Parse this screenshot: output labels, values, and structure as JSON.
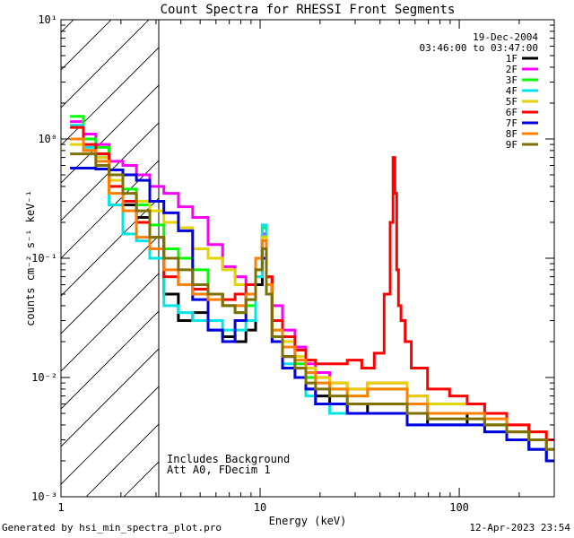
{
  "chart_data": {
    "type": "line",
    "title": "Count Spectra for RHESSI Front Segments",
    "xlabel": "Energy (keV)",
    "ylabel": "counts cm⁻² s⁻¹ keV⁻¹",
    "xscale": "log",
    "yscale": "log",
    "xlim": [
      1,
      300
    ],
    "ylim": [
      0.001,
      10
    ],
    "x_tick_labels": [
      "1",
      "10",
      "100"
    ],
    "y_tick_labels": [
      "10⁻³",
      "10⁻²",
      "10⁻¹",
      "10⁰",
      "10¹"
    ],
    "shaded_region": {
      "x_range": [
        1,
        3
      ],
      "pattern": "diagonal hatch"
    },
    "date": "19-Dec-2004",
    "time_range": "03:46:00 to 03:47:00",
    "annotations": [
      "Includes Background",
      "Att A0, FDecim 1"
    ],
    "series": [
      {
        "name": "1F",
        "color": "#000000",
        "x": [
          1.2,
          1.4,
          1.6,
          1.9,
          2.2,
          2.6,
          3.0,
          3.6,
          4.2,
          5.0,
          6.0,
          7.0,
          8.0,
          9.0,
          10.0,
          10.5,
          11.0,
          12,
          14,
          16,
          18,
          20,
          25,
          30,
          40,
          50,
          60,
          80,
          100,
          120,
          150,
          200,
          250,
          300
        ],
        "y": [
          1.0,
          0.8,
          0.75,
          0.5,
          0.28,
          0.22,
          0.12,
          0.05,
          0.03,
          0.035,
          0.025,
          0.022,
          0.02,
          0.025,
          0.06,
          0.15,
          0.07,
          0.02,
          0.015,
          0.012,
          0.008,
          0.007,
          0.006,
          0.005,
          0.006,
          0.006,
          0.005,
          0.004,
          0.004,
          0.005,
          0.004,
          0.003,
          0.0025,
          0.002
        ]
      },
      {
        "name": "2F",
        "color": "#ff00ff",
        "x": [
          1.2,
          1.4,
          1.6,
          1.9,
          2.2,
          2.6,
          3.0,
          3.6,
          4.2,
          5.0,
          6.0,
          7.0,
          8.0,
          9.0,
          10.0,
          10.5,
          11.0,
          12,
          14,
          16,
          18,
          20,
          25,
          30,
          40,
          50,
          60,
          80,
          100,
          120,
          150,
          200,
          250,
          300
        ],
        "y": [
          1.4,
          1.1,
          0.9,
          0.65,
          0.6,
          0.5,
          0.4,
          0.35,
          0.27,
          0.22,
          0.13,
          0.085,
          0.07,
          0.06,
          0.1,
          0.16,
          0.07,
          0.04,
          0.025,
          0.018,
          0.013,
          0.011,
          0.009,
          0.008,
          0.009,
          0.009,
          0.007,
          0.006,
          0.006,
          0.006,
          0.005,
          0.004,
          0.003,
          0.0025
        ]
      },
      {
        "name": "3F",
        "color": "#00ff00",
        "x": [
          1.2,
          1.4,
          1.6,
          1.9,
          2.2,
          2.6,
          3.0,
          3.6,
          4.2,
          5.0,
          6.0,
          7.0,
          8.0,
          9.0,
          10.0,
          10.5,
          11.0,
          12,
          14,
          16,
          18,
          20,
          25,
          30,
          40,
          50,
          60,
          80,
          100,
          120,
          150,
          200,
          250,
          300
        ],
        "y": [
          1.55,
          1.0,
          0.85,
          0.55,
          0.38,
          0.28,
          0.19,
          0.12,
          0.1,
          0.08,
          0.05,
          0.04,
          0.035,
          0.04,
          0.08,
          0.18,
          0.06,
          0.025,
          0.018,
          0.013,
          0.01,
          0.009,
          0.008,
          0.007,
          0.008,
          0.008,
          0.006,
          0.005,
          0.005,
          0.005,
          0.004,
          0.0035,
          0.003,
          0.0025
        ]
      },
      {
        "name": "4F",
        "color": "#00e5e5",
        "x": [
          1.2,
          1.4,
          1.6,
          1.9,
          2.2,
          2.6,
          3.0,
          3.6,
          4.2,
          5.0,
          6.0,
          7.0,
          8.0,
          9.0,
          10.0,
          10.5,
          11.0,
          12,
          14,
          16,
          18,
          20,
          25,
          30,
          40,
          50,
          60,
          80,
          100,
          120,
          150,
          200,
          250,
          300
        ],
        "y": [
          1.3,
          0.85,
          0.7,
          0.28,
          0.16,
          0.14,
          0.1,
          0.04,
          0.035,
          0.03,
          0.03,
          0.025,
          0.025,
          0.03,
          0.07,
          0.19,
          0.06,
          0.02,
          0.013,
          0.01,
          0.007,
          0.006,
          0.005,
          0.005,
          0.005,
          0.005,
          0.004,
          0.004,
          0.004,
          0.004,
          0.0035,
          0.003,
          0.0025,
          0.002
        ]
      },
      {
        "name": "5F",
        "color": "#e6d200",
        "x": [
          1.2,
          1.4,
          1.6,
          1.9,
          2.2,
          2.6,
          3.0,
          3.6,
          4.2,
          5.0,
          6.0,
          7.0,
          8.0,
          9.0,
          10.0,
          10.5,
          11.0,
          12,
          14,
          16,
          18,
          20,
          25,
          30,
          40,
          50,
          60,
          80,
          100,
          120,
          150,
          200,
          250,
          300
        ],
        "y": [
          0.9,
          0.8,
          0.7,
          0.45,
          0.35,
          0.3,
          0.25,
          0.2,
          0.18,
          0.12,
          0.1,
          0.08,
          0.06,
          0.06,
          0.1,
          0.15,
          0.07,
          0.03,
          0.02,
          0.015,
          0.012,
          0.01,
          0.009,
          0.008,
          0.009,
          0.009,
          0.007,
          0.006,
          0.006,
          0.006,
          0.005,
          0.004,
          0.0035,
          0.003
        ]
      },
      {
        "name": "6F",
        "color": "#ff0000",
        "x": [
          1.2,
          1.4,
          1.6,
          1.9,
          2.2,
          2.6,
          3.0,
          3.6,
          4.2,
          5.0,
          6.0,
          7.0,
          8.0,
          9.0,
          10.0,
          10.5,
          11.0,
          12,
          14,
          16,
          18,
          20,
          25,
          30,
          35,
          40,
          44,
          46,
          47,
          48,
          49,
          50,
          52,
          55,
          60,
          80,
          100,
          120,
          150,
          200,
          250,
          300
        ],
        "y": [
          1.25,
          0.9,
          0.75,
          0.4,
          0.3,
          0.2,
          0.15,
          0.07,
          0.06,
          0.055,
          0.05,
          0.045,
          0.05,
          0.06,
          0.1,
          0.14,
          0.07,
          0.03,
          0.022,
          0.017,
          0.014,
          0.013,
          0.013,
          0.014,
          0.012,
          0.016,
          0.05,
          0.2,
          0.7,
          0.35,
          0.08,
          0.04,
          0.03,
          0.02,
          0.012,
          0.008,
          0.007,
          0.006,
          0.005,
          0.004,
          0.0035,
          0.003
        ]
      },
      {
        "name": "7F",
        "color": "#0000e0",
        "x": [
          1.2,
          1.4,
          1.6,
          1.9,
          2.2,
          2.6,
          3.0,
          3.6,
          4.2,
          5.0,
          6.0,
          7.0,
          8.0,
          9.0,
          10.0,
          10.5,
          11.0,
          12,
          14,
          16,
          18,
          20,
          25,
          30,
          40,
          50,
          60,
          80,
          100,
          120,
          150,
          200,
          250,
          300
        ],
        "y": [
          0.57,
          0.57,
          0.56,
          0.55,
          0.5,
          0.45,
          0.3,
          0.24,
          0.17,
          0.045,
          0.025,
          0.02,
          0.03,
          0.05,
          0.1,
          0.1,
          0.06,
          0.02,
          0.012,
          0.01,
          0.008,
          0.006,
          0.006,
          0.005,
          0.005,
          0.005,
          0.004,
          0.004,
          0.004,
          0.004,
          0.0035,
          0.003,
          0.0025,
          0.002
        ]
      },
      {
        "name": "8F",
        "color": "#ff8000",
        "x": [
          1.2,
          1.4,
          1.6,
          1.9,
          2.2,
          2.6,
          3.0,
          3.6,
          4.2,
          5.0,
          6.0,
          7.0,
          8.0,
          9.0,
          10.0,
          10.5,
          11.0,
          12,
          14,
          16,
          18,
          20,
          25,
          30,
          40,
          50,
          60,
          80,
          100,
          120,
          150,
          200,
          250,
          300
        ],
        "y": [
          1.0,
          0.8,
          0.65,
          0.35,
          0.25,
          0.15,
          0.12,
          0.08,
          0.06,
          0.05,
          0.045,
          0.04,
          0.04,
          0.05,
          0.1,
          0.14,
          0.06,
          0.025,
          0.018,
          0.014,
          0.011,
          0.009,
          0.008,
          0.007,
          0.008,
          0.008,
          0.006,
          0.005,
          0.005,
          0.005,
          0.0045,
          0.0035,
          0.003,
          0.0025
        ]
      },
      {
        "name": "9F",
        "color": "#807000",
        "x": [
          1.2,
          1.4,
          1.6,
          1.9,
          2.2,
          2.6,
          3.0,
          3.6,
          4.2,
          5.0,
          6.0,
          7.0,
          8.0,
          9.0,
          10.0,
          10.5,
          11.0,
          12,
          14,
          16,
          18,
          20,
          25,
          30,
          40,
          50,
          60,
          80,
          100,
          120,
          150,
          200,
          250,
          300
        ],
        "y": [
          0.75,
          0.75,
          0.6,
          0.5,
          0.35,
          0.25,
          0.15,
          0.1,
          0.08,
          0.06,
          0.05,
          0.04,
          0.035,
          0.045,
          0.08,
          0.12,
          0.05,
          0.022,
          0.015,
          0.012,
          0.009,
          0.008,
          0.007,
          0.006,
          0.006,
          0.006,
          0.005,
          0.0045,
          0.0045,
          0.0045,
          0.004,
          0.0035,
          0.003,
          0.0025
        ]
      }
    ]
  },
  "footer": {
    "generated_by": "Generated by hsi_min_spectra_plot.pro",
    "timestamp": "12-Apr-2023 23:54"
  }
}
